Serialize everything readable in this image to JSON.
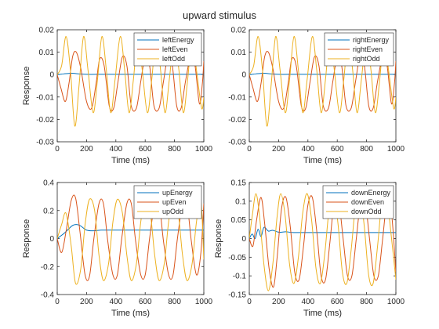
{
  "figure": {
    "title": "upward stimulus"
  },
  "chart_data": [
    {
      "type": "line",
      "xlabel": "Time (ms)",
      "ylabel": "Response",
      "xlim": [
        0,
        1000
      ],
      "ylim": [
        -0.03,
        0.02
      ],
      "xticks": [
        0,
        200,
        400,
        600,
        800,
        1000
      ],
      "yticks": [
        0.02,
        0.01,
        0,
        -0.01,
        -0.02,
        -0.03
      ],
      "ytick_labels": [
        "0.02",
        "0.01",
        "0",
        "-0.01",
        "-0.02",
        "-0.03"
      ],
      "legend": "top-right",
      "series": [
        {
          "name": "leftEnergy",
          "color": "#0072BD",
          "x": [
            0,
            30,
            60,
            100,
            150,
            200,
            300,
            400,
            500,
            600,
            700,
            800,
            900,
            1000
          ],
          "y": [
            0,
            0.0002,
            0.0004,
            0.0006,
            0.0003,
            0.0001,
            0.0001,
            0.0001,
            0.0001,
            0.0001,
            0.0001,
            0.0001,
            0.0001,
            0.0001
          ]
        },
        {
          "name": "leftEven",
          "color": "#D95319",
          "x": [
            0,
            25,
            55,
            80,
            105,
            130,
            160,
            200,
            235,
            265,
            290,
            320,
            355,
            385,
            415,
            445,
            475,
            505,
            540,
            570,
            600,
            630,
            660,
            695,
            725,
            755,
            785,
            815,
            845,
            875,
            910,
            940,
            970,
            990,
            1000
          ],
          "y": [
            0,
            -0.006,
            -0.012,
            -0.004,
            0.008,
            0.01,
            0.003,
            -0.012,
            -0.015,
            -0.004,
            0.007,
            0.004,
            -0.014,
            -0.015,
            -0.003,
            0.008,
            0.004,
            -0.014,
            -0.015,
            -0.003,
            0.008,
            0.004,
            -0.014,
            -0.015,
            -0.003,
            0.008,
            0.004,
            -0.014,
            -0.015,
            -0.003,
            0.008,
            0.004,
            -0.013,
            -0.004,
            0.006
          ]
        },
        {
          "name": "leftOdd",
          "color": "#EDB120",
          "x": [
            0,
            30,
            60,
            90,
            120,
            150,
            180,
            210,
            245,
            275,
            305,
            335,
            365,
            395,
            430,
            460,
            490,
            520,
            550,
            580,
            615,
            645,
            675,
            705,
            735,
            765,
            800,
            830,
            860,
            890,
            920,
            950,
            985,
            1000
          ],
          "y": [
            0,
            0.004,
            0.017,
            0.002,
            -0.023,
            -0.004,
            0.017,
            0.002,
            -0.017,
            -0.002,
            0.017,
            0.002,
            -0.017,
            -0.002,
            0.017,
            0.002,
            -0.017,
            -0.002,
            0.017,
            0.002,
            -0.017,
            -0.002,
            0.017,
            0.002,
            -0.017,
            -0.002,
            0.017,
            0.002,
            -0.017,
            -0.002,
            0.017,
            0.002,
            -0.015,
            -0.01
          ]
        }
      ]
    },
    {
      "type": "line",
      "xlabel": "Time (ms)",
      "ylabel": "",
      "xlim": [
        0,
        1000
      ],
      "ylim": [
        -0.03,
        0.02
      ],
      "xticks": [
        0,
        200,
        400,
        600,
        800,
        1000
      ],
      "yticks": [
        0.02,
        0.01,
        0,
        -0.01,
        -0.02,
        -0.03
      ],
      "ytick_labels": [
        "0.02",
        "0.01",
        "0",
        "-0.01",
        "-0.02",
        "-0.03"
      ],
      "legend": "top-right",
      "series": [
        {
          "name": "rightEnergy",
          "color": "#0072BD",
          "x": [
            0,
            30,
            60,
            100,
            150,
            200,
            300,
            400,
            500,
            600,
            700,
            800,
            900,
            1000
          ],
          "y": [
            0,
            0.0002,
            0.0004,
            0.0006,
            0.0003,
            0.0001,
            0.0001,
            0.0001,
            0.0001,
            0.0001,
            0.0001,
            0.0001,
            0.0001,
            0.0001
          ]
        },
        {
          "name": "rightEven",
          "color": "#D95319",
          "x": [
            0,
            25,
            55,
            80,
            105,
            130,
            160,
            200,
            235,
            265,
            290,
            320,
            355,
            385,
            415,
            445,
            475,
            505,
            540,
            570,
            600,
            630,
            660,
            695,
            725,
            755,
            785,
            815,
            845,
            875,
            910,
            940,
            970,
            990,
            1000
          ],
          "y": [
            0,
            -0.006,
            -0.012,
            -0.004,
            0.008,
            0.01,
            0.003,
            -0.012,
            -0.015,
            -0.004,
            0.007,
            0.004,
            -0.014,
            -0.015,
            -0.003,
            0.008,
            0.004,
            -0.014,
            -0.015,
            -0.003,
            0.008,
            0.004,
            -0.014,
            -0.015,
            -0.003,
            0.008,
            0.004,
            -0.014,
            -0.015,
            -0.003,
            0.008,
            0.004,
            -0.013,
            -0.004,
            0.006
          ]
        },
        {
          "name": "rightOdd",
          "color": "#EDB120",
          "x": [
            0,
            30,
            60,
            90,
            120,
            150,
            180,
            210,
            245,
            275,
            305,
            335,
            365,
            395,
            430,
            460,
            490,
            520,
            550,
            580,
            615,
            645,
            675,
            705,
            735,
            765,
            800,
            830,
            860,
            890,
            920,
            950,
            985,
            1000
          ],
          "y": [
            0,
            0.004,
            0.017,
            0.002,
            -0.023,
            -0.004,
            0.017,
            0.002,
            -0.017,
            -0.002,
            0.017,
            0.002,
            -0.017,
            -0.002,
            0.017,
            0.002,
            -0.017,
            -0.002,
            0.017,
            0.002,
            -0.017,
            -0.002,
            0.017,
            0.002,
            -0.017,
            -0.002,
            0.017,
            0.002,
            -0.017,
            -0.002,
            0.017,
            0.002,
            -0.015,
            -0.01
          ]
        }
      ]
    },
    {
      "type": "line",
      "xlabel": "Time (ms)",
      "ylabel": "Response",
      "xlim": [
        0,
        1000
      ],
      "ylim": [
        -0.4,
        0.4
      ],
      "xticks": [
        0,
        200,
        400,
        600,
        800,
        1000
      ],
      "yticks": [
        0.4,
        0.2,
        0,
        -0.2,
        -0.4
      ],
      "ytick_labels": [
        "0.4",
        "0.2",
        "0",
        "-0.2",
        "-0.4"
      ],
      "legend": "top-right",
      "series": [
        {
          "name": "upEnergy",
          "color": "#0072BD",
          "x": [
            0,
            50,
            100,
            130,
            160,
            200,
            250,
            300,
            400,
            500,
            600,
            700,
            800,
            900,
            1000
          ],
          "y": [
            0,
            0.04,
            0.09,
            0.1,
            0.09,
            0.06,
            0.055,
            0.06,
            0.06,
            0.06,
            0.06,
            0.06,
            0.06,
            0.06,
            0.06
          ]
        },
        {
          "name": "upEven",
          "color": "#D95319",
          "x": [
            0,
            30,
            60,
            95,
            125,
            155,
            190,
            220,
            250,
            285,
            315,
            345,
            380,
            410,
            440,
            475,
            505,
            535,
            570,
            600,
            630,
            665,
            695,
            725,
            760,
            790,
            820,
            855,
            885,
            915,
            950,
            980,
            1000
          ],
          "y": [
            0,
            -0.1,
            0.05,
            0.27,
            0.29,
            0.05,
            -0.26,
            -0.27,
            0.0,
            0.25,
            0.25,
            -0.02,
            -0.26,
            -0.26,
            0.0,
            0.25,
            0.25,
            -0.02,
            -0.26,
            -0.26,
            0.0,
            0.25,
            0.25,
            -0.02,
            -0.26,
            -0.26,
            0.0,
            0.25,
            0.25,
            -0.02,
            -0.26,
            -0.1,
            0.25
          ]
        },
        {
          "name": "upOdd",
          "color": "#EDB120",
          "x": [
            0,
            30,
            60,
            95,
            125,
            160,
            190,
            220,
            255,
            285,
            315,
            350,
            380,
            410,
            445,
            475,
            505,
            540,
            570,
            600,
            635,
            665,
            695,
            730,
            760,
            790,
            825,
            855,
            885,
            920,
            950,
            980,
            1000
          ],
          "y": [
            0,
            0.1,
            0.18,
            -0.05,
            -0.32,
            -0.22,
            0.1,
            0.28,
            0.2,
            -0.12,
            -0.3,
            -0.18,
            0.12,
            0.28,
            0.18,
            -0.12,
            -0.3,
            -0.18,
            0.12,
            0.28,
            0.18,
            -0.12,
            -0.3,
            -0.18,
            0.12,
            0.28,
            0.18,
            -0.12,
            -0.3,
            -0.18,
            0.12,
            0.27,
            -0.15
          ]
        }
      ]
    },
    {
      "type": "line",
      "xlabel": "Time (ms)",
      "ylabel": "Response",
      "xlim": [
        0,
        1000
      ],
      "ylim": [
        -0.15,
        0.15
      ],
      "xticks": [
        0,
        200,
        400,
        600,
        800,
        1000
      ],
      "yticks": [
        0.15,
        0.1,
        0.05,
        0,
        -0.05,
        -0.1,
        -0.15
      ],
      "ytick_labels": [
        "0.15",
        "0.1",
        "0.05",
        "0",
        "-0.05",
        "-0.1",
        "-0.15"
      ],
      "legend": "top-right",
      "series": [
        {
          "name": "downEnergy",
          "color": "#0072BD",
          "x": [
            0,
            20,
            40,
            60,
            80,
            100,
            130,
            160,
            200,
            250,
            300,
            400,
            500,
            600,
            700,
            800,
            900,
            1000
          ],
          "y": [
            0,
            0.012,
            0.0,
            0.025,
            0.005,
            0.03,
            0.02,
            0.022,
            0.017,
            0.018,
            0.016,
            0.016,
            0.016,
            0.016,
            0.016,
            0.016,
            0.016,
            0.016
          ]
        },
        {
          "name": "downEven",
          "color": "#D95319",
          "x": [
            0,
            25,
            50,
            80,
            105,
            135,
            165,
            190,
            220,
            250,
            280,
            310,
            340,
            370,
            400,
            430,
            460,
            490,
            520,
            550,
            580,
            610,
            640,
            670,
            700,
            730,
            760,
            790,
            820,
            850,
            880,
            910,
            940,
            970,
            1000
          ],
          "y": [
            0,
            -0.02,
            0.05,
            0.11,
            0.04,
            -0.08,
            -0.13,
            -0.05,
            0.08,
            0.11,
            0.03,
            -0.09,
            -0.11,
            -0.02,
            0.09,
            0.11,
            0.02,
            -0.1,
            -0.11,
            -0.01,
            0.1,
            0.1,
            0.0,
            -0.1,
            -0.1,
            0.0,
            0.1,
            0.1,
            0.0,
            -0.1,
            -0.1,
            0.0,
            0.1,
            0.07,
            -0.09
          ]
        },
        {
          "name": "downOdd",
          "color": "#EDB120",
          "x": [
            0,
            20,
            45,
            70,
            100,
            130,
            160,
            190,
            215,
            245,
            275,
            305,
            335,
            365,
            395,
            425,
            455,
            485,
            515,
            545,
            575,
            605,
            635,
            665,
            695,
            725,
            755,
            785,
            815,
            845,
            875,
            905,
            935,
            965,
            1000
          ],
          "y": [
            0,
            0.06,
            0.12,
            0.06,
            -0.07,
            -0.14,
            -0.07,
            0.06,
            0.12,
            0.06,
            -0.07,
            -0.12,
            -0.05,
            0.07,
            0.12,
            0.05,
            -0.08,
            -0.12,
            -0.04,
            0.08,
            0.12,
            0.04,
            -0.09,
            -0.12,
            -0.03,
            0.09,
            0.12,
            0.03,
            -0.1,
            -0.12,
            -0.02,
            0.1,
            0.12,
            0.02,
            -0.11
          ]
        }
      ]
    }
  ]
}
